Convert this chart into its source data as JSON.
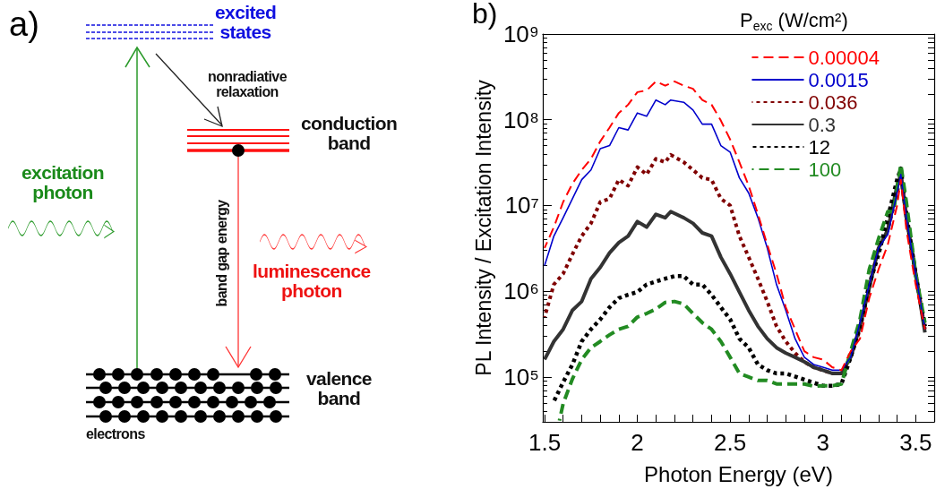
{
  "chart_data": [
    {
      "type": "other",
      "title": "a)",
      "annotations": [
        "excited states",
        "nonradiative relaxation",
        "conduction band",
        "excitation photon",
        "band gap energy",
        "luminescence photon",
        "valence band",
        "electrons"
      ]
    },
    {
      "type": "line",
      "title": "b)",
      "xlabel": "Photon Energy (eV)",
      "ylabel": "PL Intensity / Excitation Intensity",
      "legend_title": "P$_{exc}$ (W/cm²)",
      "log": "y",
      "grid": false,
      "legend": "top right",
      "marker": "none",
      "xlim": [
        1.49,
        3.6
      ],
      "xticks": [
        1.5,
        {
          "value": 1.6,
          "label": null
        },
        {
          "value": 1.7,
          "label": null
        },
        {
          "value": 1.8,
          "label": null
        },
        {
          "value": 1.9,
          "label": null
        },
        2,
        {
          "value": 2.1,
          "label": null
        },
        {
          "value": 2.2,
          "label": null
        },
        {
          "value": 2.3,
          "label": null
        },
        {
          "value": 2.4,
          "label": null
        },
        2.5,
        {
          "value": 2.6,
          "label": null
        },
        {
          "value": 2.7,
          "label": null
        },
        {
          "value": 2.8,
          "label": null
        },
        {
          "value": 2.9,
          "label": null
        },
        3,
        {
          "value": 3.1,
          "label": null
        },
        {
          "value": 3.2,
          "label": null
        },
        {
          "value": 3.3,
          "label": null
        },
        {
          "value": 3.4,
          "label": null
        },
        3.5
      ],
      "ylim": [
        30000,
        1000000000.0
      ],
      "yticks": [
        {
          "value": 30000,
          "label": null
        },
        {
          "value": 40000,
          "label": null
        },
        {
          "value": 50000,
          "label": null
        },
        {
          "value": 60000,
          "label": null
        },
        {
          "value": 70000,
          "label": null
        },
        {
          "value": 80000,
          "label": null
        },
        {
          "value": 90000,
          "label": null
        },
        {
          "value": 100000.0,
          "label": "10⁵"
        },
        {
          "value": 200000.0,
          "label": null
        },
        {
          "value": 300000.0,
          "label": null
        },
        {
          "value": 400000.0,
          "label": null
        },
        {
          "value": 500000.0,
          "label": null
        },
        {
          "value": 600000.0,
          "label": null
        },
        {
          "value": 700000.0,
          "label": null
        },
        {
          "value": 800000.0,
          "label": null
        },
        {
          "value": 900000.0,
          "label": null
        },
        {
          "value": 1000000.0,
          "label": "10⁶"
        },
        {
          "value": 2000000.0,
          "label": null
        },
        {
          "value": 3000000.0,
          "label": null
        },
        {
          "value": 4000000.0,
          "label": null
        },
        {
          "value": 5000000.0,
          "label": null
        },
        {
          "value": 6000000.0,
          "label": null
        },
        {
          "value": 7000000.0,
          "label": null
        },
        {
          "value": 8000000.0,
          "label": null
        },
        {
          "value": 9000000.0,
          "label": null
        },
        {
          "value": 10000000.0,
          "label": "10⁷"
        },
        {
          "value": 20000000.0,
          "label": null
        },
        {
          "value": 30000000.0,
          "label": null
        },
        {
          "value": 40000000.0,
          "label": null
        },
        {
          "value": 50000000.0,
          "label": null
        },
        {
          "value": 60000000.0,
          "label": null
        },
        {
          "value": 70000000.0,
          "label": null
        },
        {
          "value": 80000000.0,
          "label": null
        },
        {
          "value": 90000000.0,
          "label": null
        },
        {
          "value": 100000000.0,
          "label": "10⁸"
        },
        {
          "value": 200000000.0,
          "label": null
        },
        {
          "value": 300000000.0,
          "label": null
        },
        {
          "value": 400000000.0,
          "label": null
        },
        {
          "value": 500000000.0,
          "label": null
        },
        {
          "value": 600000000.0,
          "label": null
        },
        {
          "value": 700000000.0,
          "label": null
        },
        {
          "value": 800000000.0,
          "label": null
        },
        {
          "value": 900000000.0,
          "label": null
        },
        {
          "value": 1000000000.0,
          "label": "10⁹"
        }
      ],
      "series": [
        {
          "name": "0.00004",
          "color": "#ff0000",
          "line_style": "dashed",
          "x": [
            1.5,
            1.55,
            1.6,
            1.65,
            1.7,
            1.75,
            1.8,
            1.85,
            1.9,
            1.95,
            2.0,
            2.05,
            2.1,
            2.15,
            2.2,
            2.25,
            2.3,
            2.35,
            2.4,
            2.45,
            2.5,
            2.55,
            2.6,
            2.65,
            2.7,
            2.75,
            2.8,
            2.85,
            2.9,
            2.95,
            3.0,
            3.05,
            3.1,
            3.15,
            3.2,
            3.25,
            3.3,
            3.35,
            3.4,
            3.42,
            3.45,
            3.5,
            3.55
          ],
          "values": [
            3200000.0,
            5600000.0,
            11000000.0,
            18000000.0,
            26000000.0,
            35000000.0,
            56000000.0,
            81000000.0,
            120000000.0,
            150000000.0,
            210000000.0,
            220000000.0,
            280000000.0,
            250000000.0,
            280000000.0,
            250000000.0,
            230000000.0,
            170000000.0,
            150000000.0,
            98000000.0,
            59000000.0,
            32000000.0,
            17000000.0,
            7900000.0,
            3500000.0,
            1600000.0,
            650000.0,
            360000.0,
            200000.0,
            170000.0,
            160000.0,
            130000.0,
            120000.0,
            200000.0,
            280000.0,
            830000.0,
            1800000.0,
            3500000.0,
            10000000.0,
            20000000.0,
            5200000.0,
            1200000.0,
            360000.0
          ]
        },
        {
          "name": "0.0015",
          "color": "#0000cc",
          "line_style": "solid",
          "x": [
            1.5,
            1.55,
            1.6,
            1.65,
            1.7,
            1.75,
            1.8,
            1.85,
            1.9,
            1.95,
            2.0,
            2.05,
            2.1,
            2.15,
            2.18,
            2.25,
            2.3,
            2.35,
            2.4,
            2.45,
            2.5,
            2.55,
            2.6,
            2.65,
            2.7,
            2.75,
            2.8,
            2.85,
            2.9,
            2.95,
            3.0,
            3.05,
            3.1,
            3.15,
            3.2,
            3.25,
            3.3,
            3.35,
            3.4,
            3.42,
            3.45,
            3.5,
            3.55
          ],
          "values": [
            2000000.0,
            4400000.0,
            7200000.0,
            12000000.0,
            20000000.0,
            26000000.0,
            46000000.0,
            50000000.0,
            81000000.0,
            76000000.0,
            120000000.0,
            110000000.0,
            170000000.0,
            150000000.0,
            170000000.0,
            160000000.0,
            130000000.0,
            89000000.0,
            89000000.0,
            50000000.0,
            42000000.0,
            21000000.0,
            14000000.0,
            7200000.0,
            3200000.0,
            1200000.0,
            600000.0,
            280000.0,
            170000.0,
            140000.0,
            130000.0,
            120000.0,
            120000.0,
            170000.0,
            430000.0,
            1200000.0,
            3200000.0,
            4600000.0,
            14000000.0,
            23000000.0,
            7200000.0,
            1600000.0,
            360000.0
          ]
        },
        {
          "name": "0.036",
          "color": "#800000",
          "line_style": "dotted",
          "x": [
            1.5,
            1.55,
            1.6,
            1.65,
            1.7,
            1.75,
            1.8,
            1.85,
            1.9,
            1.95,
            2.0,
            2.05,
            2.1,
            2.15,
            2.18,
            2.25,
            2.3,
            2.35,
            2.4,
            2.45,
            2.5,
            2.55,
            2.6,
            2.65,
            2.7,
            2.75,
            2.8,
            2.85,
            2.9,
            2.95,
            3.0,
            3.05,
            3.1,
            3.15,
            3.2,
            3.25,
            3.3,
            3.35,
            3.4,
            3.42,
            3.45,
            3.5,
            3.55
          ],
          "values": [
            500000.0,
            1200000.0,
            1600000.0,
            2700000.0,
            4400000.0,
            6200000.0,
            11000000.0,
            12000000.0,
            20000000.0,
            17000000.0,
            28000000.0,
            23000000.0,
            35000000.0,
            32000000.0,
            39000000.0,
            32000000.0,
            26000000.0,
            21000000.0,
            20000000.0,
            12000000.0,
            10000000.0,
            4400000.0,
            2500000.0,
            1400000.0,
            760000.0,
            390000.0,
            260000.0,
            190000.0,
            150000.0,
            130000.0,
            120000.0,
            110000.0,
            110000.0,
            170000.0,
            360000.0,
            1100000.0,
            3200000.0,
            5200000.0,
            14000000.0,
            23000000.0,
            7200000.0,
            1600000.0,
            360000.0
          ]
        },
        {
          "name": "0.3",
          "color": "#333333",
          "line_style": "solid",
          "x": [
            1.5,
            1.55,
            1.6,
            1.65,
            1.7,
            1.75,
            1.8,
            1.85,
            1.9,
            1.95,
            2.0,
            2.05,
            2.1,
            2.15,
            2.18,
            2.25,
            2.3,
            2.35,
            2.4,
            2.45,
            2.5,
            2.55,
            2.6,
            2.65,
            2.7,
            2.75,
            2.8,
            2.85,
            2.9,
            2.95,
            3.0,
            3.05,
            3.1,
            3.15,
            3.2,
            3.25,
            3.3,
            3.35,
            3.4,
            3.42,
            3.45,
            3.5,
            3.55
          ],
          "values": [
            160000.0,
            260000.0,
            360000.0,
            600000.0,
            760000.0,
            1400000.0,
            1900000.0,
            2800000.0,
            3700000.0,
            4400000.0,
            6500000.0,
            5600000.0,
            7900000.0,
            7200000.0,
            8500000.0,
            7200000.0,
            6200000.0,
            4800000.0,
            4400000.0,
            2500000.0,
            1600000.0,
            980000.0,
            600000.0,
            390000.0,
            280000.0,
            220000.0,
            190000.0,
            170000.0,
            150000.0,
            130000.0,
            120000.0,
            110000.0,
            110000.0,
            170000.0,
            390000.0,
            1100000.0,
            3200000.0,
            5200000.0,
            17000000.0,
            23000000.0,
            7200000.0,
            1600000.0,
            330000.0
          ]
        },
        {
          "name": "12",
          "color": "#000000",
          "line_style": "dotted",
          "x": [
            1.55,
            1.6,
            1.65,
            1.7,
            1.75,
            1.8,
            1.85,
            1.9,
            1.95,
            2.0,
            2.05,
            2.1,
            2.15,
            2.2,
            2.25,
            2.3,
            2.35,
            2.4,
            2.45,
            2.5,
            2.55,
            2.6,
            2.65,
            2.7,
            2.75,
            2.8,
            2.9,
            3.0,
            3.05,
            3.1,
            3.15,
            3.2,
            3.25,
            3.3,
            3.35,
            3.4,
            3.42,
            3.45,
            3.5,
            3.55
          ],
          "values": [
            52000.0,
            87000.0,
            140000.0,
            260000.0,
            360000.0,
            470000.0,
            650000.0,
            830000.0,
            910000.0,
            980000.0,
            1200000.0,
            1300000.0,
            1400000.0,
            1500000.0,
            1500000.0,
            1200000.0,
            1200000.0,
            910000.0,
            650000.0,
            470000.0,
            280000.0,
            220000.0,
            140000.0,
            120000.0,
            110000.0,
            110000.0,
            93000.0,
            79000.0,
            79000.0,
            83000.0,
            170000.0,
            390000.0,
            1200000.0,
            2700000.0,
            7200000.0,
            20000000.0,
            27000000.0,
            7900000.0,
            1600000.0,
            390000.0
          ]
        },
        {
          "name": "100",
          "color": "#228b22",
          "line_style": "dashed",
          "x": [
            1.58,
            1.6,
            1.65,
            1.7,
            1.75,
            1.8,
            1.85,
            1.9,
            1.95,
            2.0,
            2.05,
            2.1,
            2.15,
            2.2,
            2.25,
            2.3,
            2.35,
            2.4,
            2.45,
            2.5,
            2.55,
            2.6,
            2.65,
            2.7,
            2.75,
            2.8,
            2.9,
            2.95,
            3.0,
            3.05,
            3.1,
            3.15,
            3.2,
            3.25,
            3.3,
            3.35,
            3.38,
            3.42,
            3.45,
            3.5,
            3.55
          ],
          "values": [
            31000.0,
            49000.0,
            95000.0,
            160000.0,
            220000.0,
            260000.0,
            310000.0,
            360000.0,
            390000.0,
            500000.0,
            550000.0,
            620000.0,
            740000.0,
            760000.0,
            710000.0,
            550000.0,
            430000.0,
            360000.0,
            260000.0,
            170000.0,
            110000.0,
            100000.0,
            91000.0,
            91000.0,
            83000.0,
            83000.0,
            83000.0,
            78000.0,
            79000.0,
            79000.0,
            83000.0,
            200000.0,
            470000.0,
            1800000.0,
            4100000.0,
            8500000.0,
            8500000.0,
            30000000.0,
            11000000.0,
            1600000.0,
            430000.0
          ]
        }
      ]
    }
  ]
}
